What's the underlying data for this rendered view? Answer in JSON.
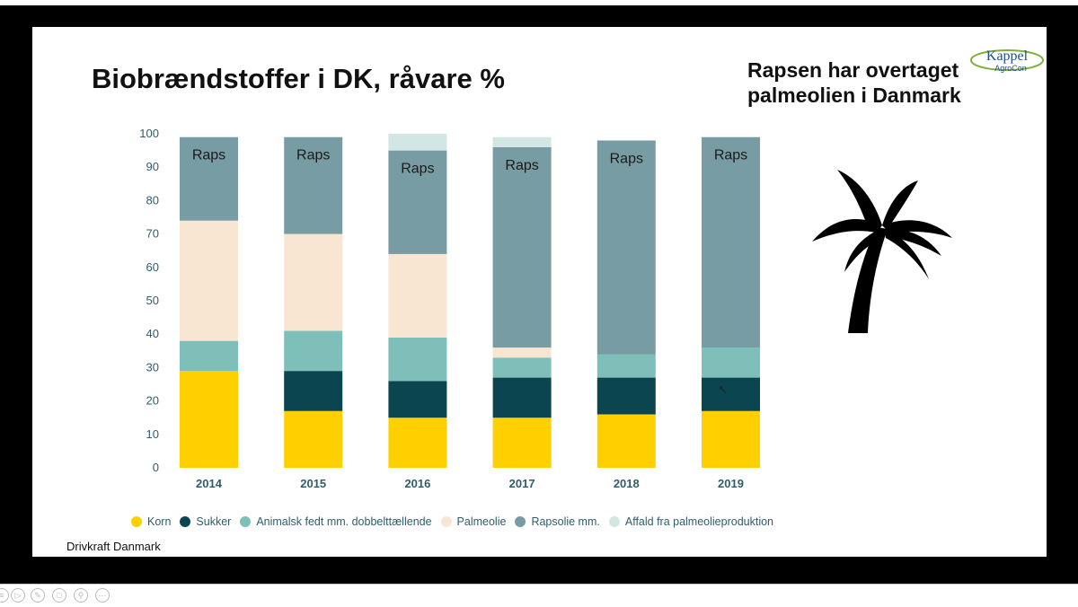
{
  "slide": {
    "title": "Biobrændstoffer i DK, råvare %",
    "subtitle_lines": [
      "Rapsen har overtaget",
      "palmeolien i Danmark"
    ],
    "source": "Drivkraft Danmark",
    "logo": {
      "line1": "Kappel",
      "line2": "AgroCon"
    }
  },
  "colors": {
    "korn": "#FFD000",
    "sukker": "#0B4650",
    "animalsk": "#7FBFBA",
    "palmeolie": "#F8E6D2",
    "rapsolie": "#789CA3",
    "affald": "#D2E6E3",
    "palm_tree": "#000000"
  },
  "icons": {
    "palm": "palm-tree-icon",
    "cursor": "mouse-pointer-icon"
  },
  "chart_data": {
    "type": "bar",
    "stacked": true,
    "categories": [
      "2014",
      "2015",
      "2016",
      "2017",
      "2018",
      "2019"
    ],
    "ylim": [
      0,
      100
    ],
    "yticks": [
      0,
      10,
      20,
      30,
      40,
      50,
      60,
      70,
      80,
      90,
      100
    ],
    "xlabel": "",
    "ylabel": "",
    "legend_position": "bottom",
    "series": [
      {
        "key": "korn",
        "name": "Korn",
        "values": [
          29,
          17,
          15,
          15,
          16,
          17
        ]
      },
      {
        "key": "sukker",
        "name": "Sukker",
        "values": [
          0,
          12,
          11,
          12,
          11,
          10
        ]
      },
      {
        "key": "animalsk",
        "name": "Animalsk fedt mm. dobbelttællende",
        "values": [
          9,
          12,
          13,
          6,
          7,
          9
        ]
      },
      {
        "key": "palmeolie",
        "name": "Palmeolie",
        "values": [
          36,
          29,
          25,
          3,
          0,
          0
        ]
      },
      {
        "key": "rapsolie",
        "name": "Rapsolie mm.",
        "values": [
          25,
          29,
          31,
          60,
          64,
          63
        ]
      },
      {
        "key": "affald",
        "name": "Affald fra palmeolieproduktion",
        "values": [
          0,
          0,
          5,
          3,
          0,
          0
        ]
      }
    ],
    "annotations": [
      "Raps",
      "Raps",
      "Raps",
      "Raps",
      "Raps",
      "Raps"
    ]
  },
  "controls": [
    "slide-menu",
    "play",
    "pen",
    "slides",
    "zoom",
    "more"
  ]
}
